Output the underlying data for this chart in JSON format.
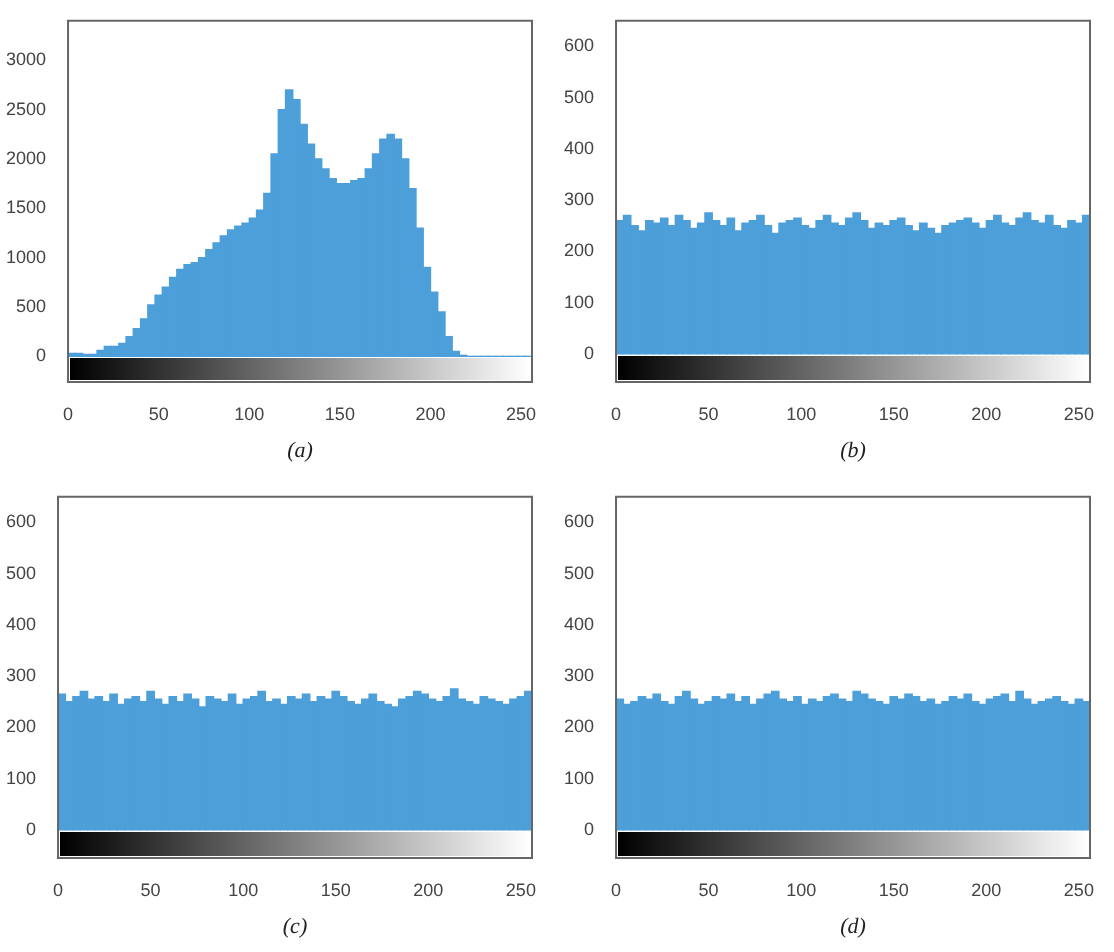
{
  "chart_data": [
    {
      "type": "histogram",
      "xlabel": "(a)",
      "color": "#4d9fd9",
      "bins": [
        0,
        4,
        8,
        12,
        16,
        20,
        24,
        28,
        32,
        36,
        40,
        44,
        48,
        52,
        56,
        60,
        64,
        68,
        72,
        76,
        80,
        84,
        88,
        92,
        96,
        100,
        104,
        108,
        112,
        116,
        120,
        124,
        128,
        132,
        136,
        140,
        144,
        148,
        152,
        156,
        160,
        164,
        168,
        172,
        176,
        180,
        184,
        188,
        192,
        196,
        200,
        204,
        208,
        212,
        216,
        220,
        224,
        228,
        232,
        236,
        240,
        244,
        248,
        252,
        256
      ],
      "values": [
        30,
        30,
        20,
        20,
        60,
        100,
        100,
        130,
        200,
        280,
        380,
        520,
        620,
        700,
        800,
        880,
        930,
        950,
        1000,
        1080,
        1150,
        1220,
        1280,
        1320,
        1350,
        1400,
        1480,
        1650,
        2050,
        2500,
        2700,
        2600,
        2350,
        2150,
        2000,
        1900,
        1800,
        1750,
        1750,
        1780,
        1800,
        1900,
        2050,
        2200,
        2250,
        2200,
        2000,
        1700,
        1300,
        900,
        650,
        450,
        200,
        50,
        10,
        0,
        0,
        0,
        0,
        0,
        0,
        0,
        0,
        0
      ],
      "xlim": [
        0,
        256
      ],
      "ylim": [
        -260,
        3400
      ],
      "xticks": [
        0,
        50,
        100,
        150,
        200,
        250
      ],
      "yticks": [
        0,
        500,
        1000,
        1500,
        2000,
        2500,
        3000
      ],
      "grid": false,
      "legend": false
    },
    {
      "type": "histogram",
      "xlabel": "(b)",
      "color": "#4d9fd9",
      "bins": [
        0,
        4,
        8,
        12,
        16,
        20,
        24,
        28,
        32,
        36,
        40,
        44,
        48,
        52,
        56,
        60,
        64,
        68,
        72,
        76,
        80,
        84,
        88,
        92,
        96,
        100,
        104,
        108,
        112,
        116,
        120,
        124,
        128,
        132,
        136,
        140,
        144,
        148,
        152,
        156,
        160,
        164,
        168,
        172,
        176,
        180,
        184,
        188,
        192,
        196,
        200,
        204,
        208,
        212,
        216,
        220,
        224,
        228,
        232,
        236,
        240,
        244,
        248,
        252,
        256
      ],
      "values": [
        260,
        270,
        250,
        240,
        260,
        255,
        265,
        250,
        270,
        260,
        245,
        255,
        275,
        260,
        250,
        265,
        240,
        255,
        260,
        270,
        250,
        235,
        255,
        260,
        265,
        250,
        245,
        260,
        270,
        255,
        250,
        265,
        275,
        260,
        245,
        255,
        250,
        260,
        265,
        250,
        240,
        255,
        245,
        235,
        250,
        255,
        260,
        265,
        255,
        245,
        260,
        270,
        255,
        250,
        265,
        275,
        260,
        255,
        270,
        250,
        245,
        260,
        255,
        270
      ],
      "xlim": [
        0,
        256
      ],
      "ylim": [
        -55,
        650
      ],
      "xticks": [
        0,
        50,
        100,
        150,
        200,
        250
      ],
      "yticks": [
        0,
        100,
        200,
        300,
        400,
        500,
        600
      ],
      "grid": false,
      "legend": false
    },
    {
      "type": "histogram",
      "xlabel": "(c)",
      "color": "#4d9fd9",
      "bins": [
        0,
        4,
        8,
        12,
        16,
        20,
        24,
        28,
        32,
        36,
        40,
        44,
        48,
        52,
        56,
        60,
        64,
        68,
        72,
        76,
        80,
        84,
        88,
        92,
        96,
        100,
        104,
        108,
        112,
        116,
        120,
        124,
        128,
        132,
        136,
        140,
        144,
        148,
        152,
        156,
        160,
        164,
        168,
        172,
        176,
        180,
        184,
        188,
        192,
        196,
        200,
        204,
        208,
        212,
        216,
        220,
        224,
        228,
        232,
        236,
        240,
        244,
        248,
        252,
        256
      ],
      "values": [
        265,
        250,
        260,
        270,
        255,
        260,
        250,
        265,
        245,
        255,
        260,
        250,
        270,
        255,
        245,
        260,
        250,
        265,
        255,
        240,
        260,
        255,
        250,
        265,
        245,
        255,
        260,
        270,
        250,
        255,
        245,
        260,
        255,
        265,
        250,
        260,
        255,
        270,
        260,
        250,
        245,
        255,
        265,
        250,
        245,
        240,
        255,
        260,
        270,
        265,
        255,
        250,
        260,
        275,
        255,
        250,
        245,
        260,
        255,
        250,
        245,
        255,
        260,
        270
      ],
      "xlim": [
        0,
        256
      ],
      "ylim": [
        -55,
        650
      ],
      "xticks": [
        0,
        50,
        100,
        150,
        200,
        250
      ],
      "yticks": [
        0,
        100,
        200,
        300,
        400,
        500,
        600
      ],
      "grid": false,
      "legend": false
    },
    {
      "type": "histogram",
      "xlabel": "(d)",
      "color": "#4d9fd9",
      "bins": [
        0,
        4,
        8,
        12,
        16,
        20,
        24,
        28,
        32,
        36,
        40,
        44,
        48,
        52,
        56,
        60,
        64,
        68,
        72,
        76,
        80,
        84,
        88,
        92,
        96,
        100,
        104,
        108,
        112,
        116,
        120,
        124,
        128,
        132,
        136,
        140,
        144,
        148,
        152,
        156,
        160,
        164,
        168,
        172,
        176,
        180,
        184,
        188,
        192,
        196,
        200,
        204,
        208,
        212,
        216,
        220,
        224,
        228,
        232,
        236,
        240,
        244,
        248,
        252,
        256
      ],
      "values": [
        255,
        245,
        250,
        260,
        255,
        265,
        250,
        245,
        260,
        270,
        255,
        245,
        250,
        260,
        255,
        265,
        250,
        260,
        245,
        255,
        265,
        270,
        255,
        250,
        260,
        245,
        255,
        250,
        260,
        265,
        255,
        250,
        270,
        265,
        255,
        250,
        245,
        260,
        255,
        265,
        260,
        250,
        255,
        245,
        250,
        260,
        255,
        265,
        250,
        245,
        255,
        260,
        265,
        250,
        270,
        255,
        245,
        250,
        255,
        260,
        250,
        245,
        255,
        250
      ],
      "xlim": [
        0,
        256
      ],
      "ylim": [
        -55,
        650
      ],
      "xticks": [
        0,
        50,
        100,
        150,
        200,
        250
      ],
      "yticks": [
        0,
        100,
        200,
        300,
        400,
        500,
        600
      ],
      "grid": false,
      "legend": false
    }
  ]
}
